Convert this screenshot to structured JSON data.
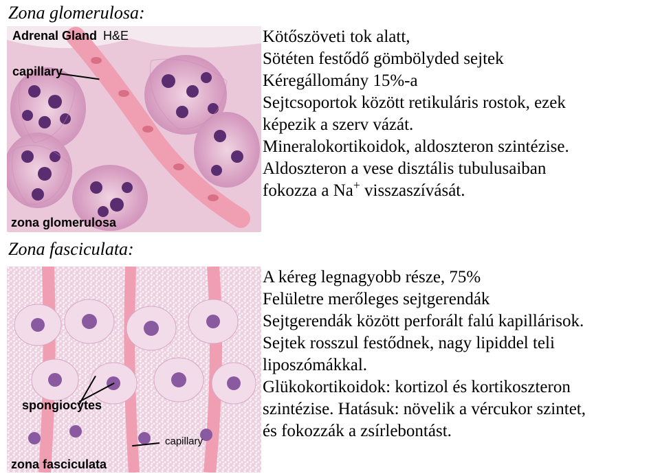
{
  "heading1": "Zona glomerulosa:",
  "heading2": "Zona fasciculata:",
  "heading_fontsize": 26,
  "body_fontsize": 25,
  "body_color": "#000000",
  "upper_text": [
    "Kötőszöveti tok alatt,",
    "Sötéten festődő gömbölyded sejtek",
    "Kéregállomány 15%-a",
    "Sejtcsoportok között retikuláris rostok, ezek",
    "képezik a szerv vázát.",
    "Mineralokortikoidok, aldoszteron szintézise.",
    "Aldoszteron a vese disztális tubulusaiban",
    "fokozza a Na{SUP+} visszaszívását."
  ],
  "lower_text": [
    "A kéreg legnagyobb része, 75%",
    "Felületre merőleges sejtgerendák",
    "Sejtgerendák között perforált falú kapillárisok.",
    "Sejtek rosszul festődnek, nagy lipiddel teli",
    "liposzómákkal.",
    "Glükokortikoidok: kortizol és kortikoszteron",
    "szintézise. Hatásuk: növelik a vércukor szintet,",
    "és fokozzák a zsírlebontást."
  ],
  "histology": {
    "bg_color": "#eac8da",
    "cytoplasm_light": "#f0d4e2",
    "cytoplasm_mid": "#d79ec1",
    "cytoplasm_dark": "#b96da2",
    "nucleus_color": "#5a2d70",
    "nucleus_light": "#8a5aa0",
    "capillary_fill": "#ef9fb1",
    "rbc_color": "#d96f86",
    "label_fontsize_large": 18,
    "label_fontsize_small": 15
  },
  "labels_top": {
    "title": "Adrenal Gland",
    "stain": "H&E",
    "capillary": "capillary",
    "zona_glom": "zona glomerulosa"
  },
  "labels_bottom": {
    "spongiocytes": "spongiocytes",
    "capillary": "capillary",
    "zona_fasc": "zona fasciculata"
  }
}
